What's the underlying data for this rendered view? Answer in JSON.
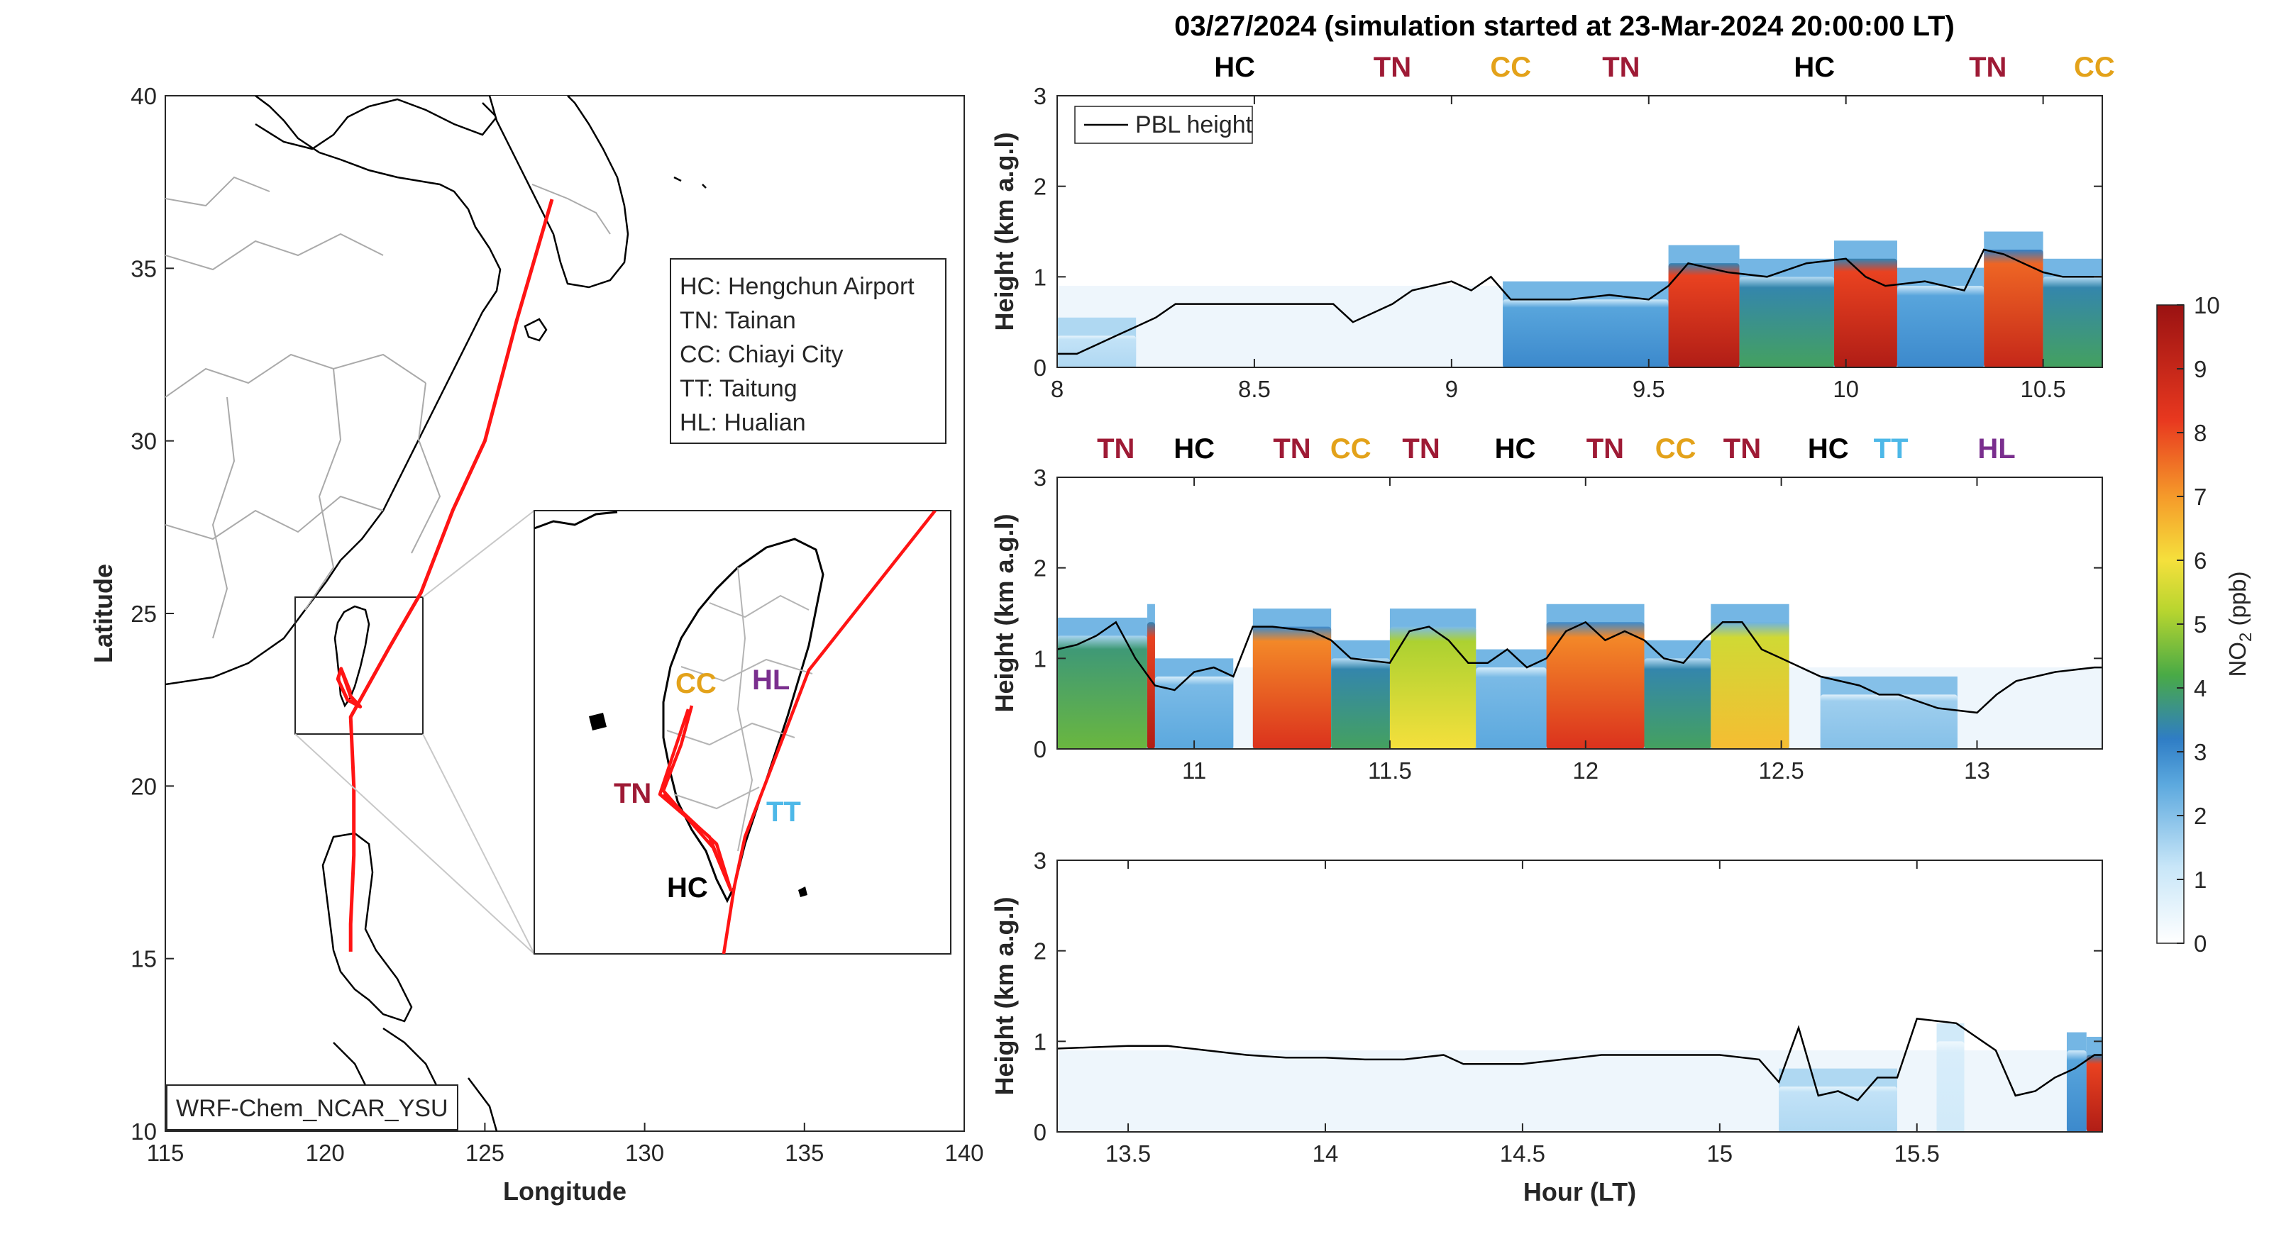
{
  "title": "03/27/2024 (simulation started at 23-Mar-2024 20:00:00 LT)",
  "colors": {
    "HC": "#000000",
    "TN": "#9e1a35",
    "CC": "#e3a21a",
    "TT": "#4db8e8",
    "HL": "#7a2f8e",
    "track": "#ff1414"
  },
  "map": {
    "xlabel": "Longitude",
    "ylabel": "Latitude",
    "xlim": [
      115,
      140
    ],
    "ylim": [
      10,
      40
    ],
    "xticks": [
      "115",
      "120",
      "125",
      "130",
      "135",
      "140"
    ],
    "yticks": [
      "10",
      "15",
      "20",
      "25",
      "30",
      "35",
      "40"
    ],
    "model_label": "WRF-Chem_NCAR_YSU",
    "legend_entries": [
      "HC: Hengchun Airport",
      "TN: Tainan",
      "CC: Chiayi City",
      "TT: Taitung",
      "HL: Hualian"
    ],
    "track": [
      [
        127.1,
        37.0
      ],
      [
        126.0,
        33.5
      ],
      [
        125.0,
        30.0
      ],
      [
        124.0,
        28.0
      ],
      [
        123.0,
        25.6
      ],
      [
        122.0,
        24.0
      ],
      [
        121.1,
        22.5
      ],
      [
        120.8,
        22.0
      ],
      [
        120.9,
        20.0
      ],
      [
        120.9,
        18.0
      ],
      [
        120.8,
        16.0
      ],
      [
        120.8,
        15.2
      ]
    ],
    "track_taiwan": [
      [
        120.5,
        23.4
      ],
      [
        120.8,
        22.6
      ],
      [
        121.1,
        22.3
      ],
      [
        120.7,
        22.5
      ],
      [
        120.4,
        23.1
      ],
      [
        120.5,
        23.4
      ],
      [
        120.8,
        22.7
      ]
    ],
    "inset_labels": {
      "CC": "CC",
      "HL": "HL",
      "TN": "TN",
      "TT": "TT",
      "HC": "HC"
    }
  },
  "chart_data": [
    {
      "type": "heatmap",
      "description_series": "NO2 curtain with PBL height line",
      "xlim": [
        8.0,
        10.65
      ],
      "ylim": [
        0,
        3
      ],
      "xticks": [
        "8",
        "8.5",
        "9",
        "9.5",
        "10",
        "10.5"
      ],
      "yticks": [
        "0",
        "1",
        "2",
        "3"
      ],
      "ylabel": "Height (km a.g.l)",
      "legend": "PBL height",
      "sites": [
        {
          "code": "HC",
          "x": 8.45
        },
        {
          "code": "TN",
          "x": 8.85
        },
        {
          "code": "CC",
          "x": 9.15
        },
        {
          "code": "TN",
          "x": 9.43
        },
        {
          "code": "HC",
          "x": 9.92
        },
        {
          "code": "TN",
          "x": 10.36
        },
        {
          "code": "CC",
          "x": 10.63
        }
      ],
      "pbl": {
        "x": [
          8.0,
          8.05,
          8.1,
          8.15,
          8.2,
          8.25,
          8.3,
          8.4,
          8.5,
          8.6,
          8.7,
          8.75,
          8.85,
          8.9,
          9.0,
          9.05,
          9.1,
          9.15,
          9.2,
          9.3,
          9.4,
          9.5,
          9.55,
          9.6,
          9.7,
          9.8,
          9.9,
          10.0,
          10.05,
          10.1,
          10.2,
          10.3,
          10.35,
          10.4,
          10.45,
          10.5,
          10.55,
          10.6,
          10.65
        ],
        "y": [
          0.15,
          0.15,
          0.25,
          0.35,
          0.45,
          0.55,
          0.7,
          0.7,
          0.7,
          0.7,
          0.7,
          0.5,
          0.7,
          0.85,
          0.95,
          0.85,
          1.0,
          0.75,
          0.75,
          0.75,
          0.8,
          0.75,
          0.9,
          1.15,
          1.05,
          1.0,
          1.15,
          1.2,
          1.0,
          0.9,
          0.95,
          0.85,
          1.3,
          1.25,
          1.15,
          1.05,
          1.0,
          1.0,
          1.0
        ]
      },
      "no2_blocks": [
        {
          "x0": 8.0,
          "x1": 8.2,
          "top": 0.35,
          "value": 1.5
        },
        {
          "x0": 9.13,
          "x1": 9.55,
          "top": 0.75,
          "value": 3.0
        },
        {
          "x0": 9.55,
          "x1": 9.73,
          "top": 1.15,
          "value": 9.5
        },
        {
          "x0": 9.73,
          "x1": 9.97,
          "top": 1.0,
          "value": 4.0
        },
        {
          "x0": 9.97,
          "x1": 10.13,
          "top": 1.2,
          "value": 9.5
        },
        {
          "x0": 10.13,
          "x1": 10.35,
          "top": 0.9,
          "value": 3.0
        },
        {
          "x0": 10.35,
          "x1": 10.5,
          "top": 1.3,
          "value": 9.0
        },
        {
          "x0": 10.5,
          "x1": 10.65,
          "top": 1.0,
          "value": 4.0
        }
      ]
    },
    {
      "type": "heatmap",
      "xlim": [
        10.65,
        13.32
      ],
      "ylim": [
        0,
        3
      ],
      "xticks": [
        "11",
        "11.5",
        "12",
        "12.5",
        "13"
      ],
      "yticks": [
        "0",
        "1",
        "2",
        "3"
      ],
      "ylabel": "Height (km a.g.l)",
      "sites": [
        {
          "code": "TN",
          "x": 10.8
        },
        {
          "code": "HC",
          "x": 11.0
        },
        {
          "code": "TN",
          "x": 11.25
        },
        {
          "code": "CC",
          "x": 11.4
        },
        {
          "code": "TN",
          "x": 11.58
        },
        {
          "code": "HC",
          "x": 11.82
        },
        {
          "code": "TN",
          "x": 12.05
        },
        {
          "code": "CC",
          "x": 12.23
        },
        {
          "code": "TN",
          "x": 12.4
        },
        {
          "code": "HC",
          "x": 12.62
        },
        {
          "code": "TT",
          "x": 12.78
        },
        {
          "code": "HL",
          "x": 13.05
        }
      ],
      "pbl": {
        "x": [
          10.65,
          10.7,
          10.75,
          10.8,
          10.85,
          10.9,
          10.95,
          11.0,
          11.05,
          11.1,
          11.15,
          11.2,
          11.3,
          11.35,
          11.4,
          11.5,
          11.55,
          11.6,
          11.65,
          11.7,
          11.75,
          11.8,
          11.85,
          11.9,
          11.95,
          12.0,
          12.05,
          12.1,
          12.15,
          12.2,
          12.25,
          12.3,
          12.35,
          12.4,
          12.45,
          12.5,
          12.6,
          12.7,
          12.75,
          12.8,
          12.9,
          13.0,
          13.05,
          13.1,
          13.2,
          13.3,
          13.32
        ],
        "y": [
          1.1,
          1.15,
          1.25,
          1.4,
          1.0,
          0.7,
          0.65,
          0.85,
          0.9,
          0.8,
          1.35,
          1.35,
          1.3,
          1.2,
          1.0,
          0.95,
          1.3,
          1.35,
          1.2,
          0.95,
          0.95,
          1.1,
          0.9,
          1.0,
          1.3,
          1.4,
          1.2,
          1.3,
          1.2,
          1.0,
          0.95,
          1.2,
          1.4,
          1.4,
          1.1,
          1.0,
          0.8,
          0.7,
          0.6,
          0.6,
          0.45,
          0.4,
          0.6,
          0.75,
          0.85,
          0.9,
          0.9
        ]
      },
      "no2_blocks": [
        {
          "x0": 10.65,
          "x1": 10.88,
          "top": 1.25,
          "value": 4.5
        },
        {
          "x0": 10.88,
          "x1": 10.9,
          "top": 1.4,
          "value": 9.5
        },
        {
          "x0": 10.9,
          "x1": 11.1,
          "top": 0.8,
          "value": 2.5
        },
        {
          "x0": 11.15,
          "x1": 11.35,
          "top": 1.35,
          "value": 8.5
        },
        {
          "x0": 11.35,
          "x1": 11.5,
          "top": 1.0,
          "value": 4.0
        },
        {
          "x0": 11.5,
          "x1": 11.72,
          "top": 1.35,
          "value": 6.0
        },
        {
          "x0": 11.72,
          "x1": 11.9,
          "top": 0.9,
          "value": 2.5
        },
        {
          "x0": 11.9,
          "x1": 12.15,
          "top": 1.4,
          "value": 8.5
        },
        {
          "x0": 12.15,
          "x1": 12.32,
          "top": 1.0,
          "value": 4.0
        },
        {
          "x0": 12.32,
          "x1": 12.52,
          "top": 1.4,
          "value": 6.5
        },
        {
          "x0": 12.6,
          "x1": 12.95,
          "top": 0.6,
          "value": 2.0
        }
      ]
    },
    {
      "type": "heatmap",
      "xlim": [
        13.32,
        15.97
      ],
      "ylim": [
        0,
        3
      ],
      "xticks": [
        "13.5",
        "14",
        "14.5",
        "15",
        "15.5"
      ],
      "yticks": [
        "0",
        "1",
        "2",
        "3"
      ],
      "ylabel": "Height (km a.g.l)",
      "xlabel": "Hour (LT)",
      "pbl": {
        "x": [
          13.32,
          13.5,
          13.6,
          13.7,
          13.8,
          13.9,
          14.0,
          14.1,
          14.2,
          14.3,
          14.35,
          14.4,
          14.5,
          14.6,
          14.7,
          14.8,
          14.9,
          15.0,
          15.1,
          15.15,
          15.2,
          15.25,
          15.3,
          15.35,
          15.4,
          15.45,
          15.5,
          15.6,
          15.65,
          15.7,
          15.75,
          15.8,
          15.85,
          15.9,
          15.95,
          15.97
        ],
        "y": [
          0.92,
          0.95,
          0.95,
          0.9,
          0.85,
          0.82,
          0.82,
          0.8,
          0.8,
          0.85,
          0.75,
          0.75,
          0.75,
          0.8,
          0.85,
          0.85,
          0.85,
          0.85,
          0.8,
          0.55,
          1.15,
          0.4,
          0.45,
          0.35,
          0.6,
          0.6,
          1.25,
          1.2,
          1.05,
          0.9,
          0.4,
          0.45,
          0.6,
          0.7,
          0.85,
          0.85
        ]
      },
      "no2_blocks": [
        {
          "x0": 15.15,
          "x1": 15.45,
          "top": 0.5,
          "value": 1.5
        },
        {
          "x0": 15.55,
          "x1": 15.62,
          "top": 1.0,
          "value": 1.0
        },
        {
          "x0": 15.88,
          "x1": 15.93,
          "top": 0.9,
          "value": 3.0
        },
        {
          "x0": 15.93,
          "x1": 15.97,
          "top": 0.85,
          "value": 9.5
        }
      ]
    }
  ],
  "colorbar": {
    "label": "NO",
    "label_sub": "2",
    "label_unit": " (ppb)",
    "ticks": [
      "0",
      "1",
      "2",
      "3",
      "4",
      "5",
      "6",
      "7",
      "8",
      "9",
      "10"
    ]
  }
}
